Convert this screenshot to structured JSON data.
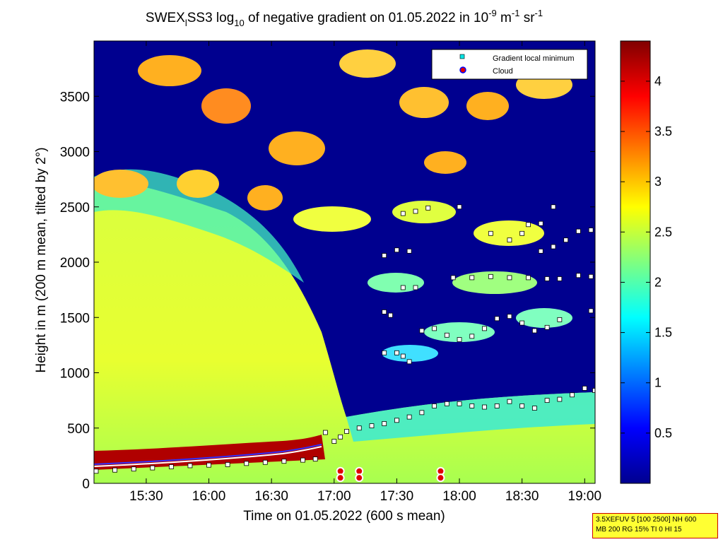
{
  "chart_data": {
    "type": "heatmap",
    "title": {
      "pre": "SWEX",
      "pre_sub": "l",
      "mid": "SS3 log",
      "mid_sub": "10",
      "post": " of negative gradient on 01.05.2022 in 10",
      "unit_sup1": "-9",
      "unit_mid": " m",
      "unit_sup2": "-1",
      "unit_mid2": " sr",
      "unit_sup3": "-1"
    },
    "xlabel": "Time on 01.05.2022 (600 s mean)",
    "ylabel": "Height in m (200 m mean, tilted by 2°)",
    "xlim_hours": [
      15.083,
      19.083
    ],
    "ylim": [
      0,
      4000
    ],
    "x_ticks": [
      {
        "value": 15.5,
        "label": "15:30"
      },
      {
        "value": 16.0,
        "label": "16:00"
      },
      {
        "value": 16.5,
        "label": "16:30"
      },
      {
        "value": 17.0,
        "label": "17:00"
      },
      {
        "value": 17.5,
        "label": "17:30"
      },
      {
        "value": 18.0,
        "label": "18:00"
      },
      {
        "value": 18.5,
        "label": "18:30"
      },
      {
        "value": 19.0,
        "label": "19:00"
      }
    ],
    "y_ticks": [
      {
        "value": 0,
        "label": "0"
      },
      {
        "value": 500,
        "label": "500"
      },
      {
        "value": 1000,
        "label": "1000"
      },
      {
        "value": 1500,
        "label": "1500"
      },
      {
        "value": 2000,
        "label": "2000"
      },
      {
        "value": 2500,
        "label": "2500"
      },
      {
        "value": 3000,
        "label": "3000"
      },
      {
        "value": 3500,
        "label": "3500"
      }
    ],
    "colorbar": {
      "range": [
        0,
        4.4
      ],
      "ticks": [
        {
          "value": 0.5,
          "label": "0.5"
        },
        {
          "value": 1,
          "label": "1"
        },
        {
          "value": 1.5,
          "label": "1.5"
        },
        {
          "value": 2,
          "label": "2"
        },
        {
          "value": 2.5,
          "label": "2.5"
        },
        {
          "value": 3,
          "label": "3"
        },
        {
          "value": 3.5,
          "label": "3.5"
        },
        {
          "value": 4,
          "label": "4"
        }
      ]
    },
    "legend": {
      "position": "top-right",
      "items": [
        {
          "label": "Gradient local minimum",
          "marker": "square",
          "color": "#00e5e5"
        },
        {
          "label": "Cloud",
          "marker": "circle",
          "color": "#e00000"
        }
      ]
    },
    "series": [
      {
        "name": "Gradient local minimum",
        "points": [
          [
            15.1,
            110
          ],
          [
            15.25,
            120
          ],
          [
            15.4,
            130
          ],
          [
            15.55,
            140
          ],
          [
            15.7,
            150
          ],
          [
            15.85,
            160
          ],
          [
            16.0,
            165
          ],
          [
            16.15,
            170
          ],
          [
            16.3,
            180
          ],
          [
            16.45,
            190
          ],
          [
            16.6,
            200
          ],
          [
            16.75,
            210
          ],
          [
            16.85,
            220
          ],
          [
            16.93,
            460
          ],
          [
            17.0,
            380
          ],
          [
            17.05,
            420
          ],
          [
            17.1,
            470
          ],
          [
            17.2,
            500
          ],
          [
            17.3,
            520
          ],
          [
            17.4,
            540
          ],
          [
            17.5,
            570
          ],
          [
            17.6,
            600
          ],
          [
            17.7,
            640
          ],
          [
            17.8,
            700
          ],
          [
            17.9,
            720
          ],
          [
            18.0,
            720
          ],
          [
            18.1,
            700
          ],
          [
            18.2,
            690
          ],
          [
            18.3,
            700
          ],
          [
            18.4,
            740
          ],
          [
            18.5,
            700
          ],
          [
            18.6,
            680
          ],
          [
            18.7,
            750
          ],
          [
            18.8,
            760
          ],
          [
            18.9,
            800
          ],
          [
            19.0,
            860
          ],
          [
            19.08,
            840
          ],
          [
            17.4,
            1180
          ],
          [
            17.5,
            1180
          ],
          [
            17.55,
            1150
          ],
          [
            17.6,
            1100
          ],
          [
            17.7,
            1380
          ],
          [
            17.8,
            1400
          ],
          [
            17.9,
            1340
          ],
          [
            18.0,
            1300
          ],
          [
            18.1,
            1330
          ],
          [
            18.2,
            1400
          ],
          [
            18.3,
            1490
          ],
          [
            18.4,
            1510
          ],
          [
            18.5,
            1450
          ],
          [
            18.6,
            1380
          ],
          [
            18.7,
            1410
          ],
          [
            18.8,
            1480
          ],
          [
            19.05,
            1560
          ],
          [
            17.4,
            1550
          ],
          [
            17.45,
            1520
          ],
          [
            17.55,
            1770
          ],
          [
            17.65,
            1770
          ],
          [
            17.95,
            1860
          ],
          [
            18.1,
            1860
          ],
          [
            18.25,
            1870
          ],
          [
            18.4,
            1860
          ],
          [
            18.55,
            1860
          ],
          [
            18.7,
            1850
          ],
          [
            18.8,
            1850
          ],
          [
            18.95,
            1880
          ],
          [
            19.05,
            1870
          ],
          [
            17.4,
            2060
          ],
          [
            17.5,
            2110
          ],
          [
            17.6,
            2100
          ],
          [
            18.25,
            2260
          ],
          [
            18.4,
            2200
          ],
          [
            18.5,
            2260
          ],
          [
            18.65,
            2100
          ],
          [
            18.75,
            2140
          ],
          [
            18.85,
            2200
          ],
          [
            18.95,
            2280
          ],
          [
            19.05,
            2290
          ],
          [
            17.55,
            2440
          ],
          [
            17.65,
            2460
          ],
          [
            17.75,
            2490
          ],
          [
            18.0,
            2500
          ],
          [
            18.55,
            2340
          ],
          [
            18.65,
            2350
          ],
          [
            18.75,
            2500
          ]
        ]
      },
      {
        "name": "Cloud",
        "points": [
          [
            17.05,
            110
          ],
          [
            17.05,
            50
          ],
          [
            17.2,
            110
          ],
          [
            17.2,
            50
          ],
          [
            17.85,
            110
          ],
          [
            17.85,
            50
          ]
        ]
      }
    ]
  },
  "info_box": {
    "line1": "3.5XEFUV 5 [100 2500] NH 600",
    "line2": "MB 200 RG 15% TI 0 HI 15"
  }
}
